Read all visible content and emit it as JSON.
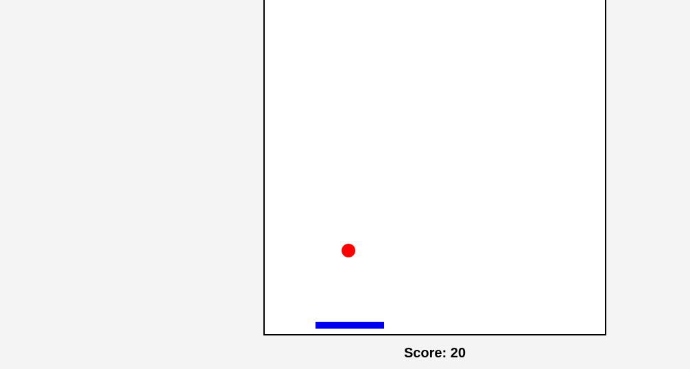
{
  "game": {
    "score_label": "Score: 20",
    "colors": {
      "page_background": "#f4f4f4",
      "board_background": "#ffffff",
      "board_border": "#000000",
      "ball": "#ff0000",
      "paddle": "#0000ee",
      "score_text": "#000000"
    },
    "icons": {
      "ball": "ball-icon",
      "paddle": "paddle-icon"
    }
  }
}
